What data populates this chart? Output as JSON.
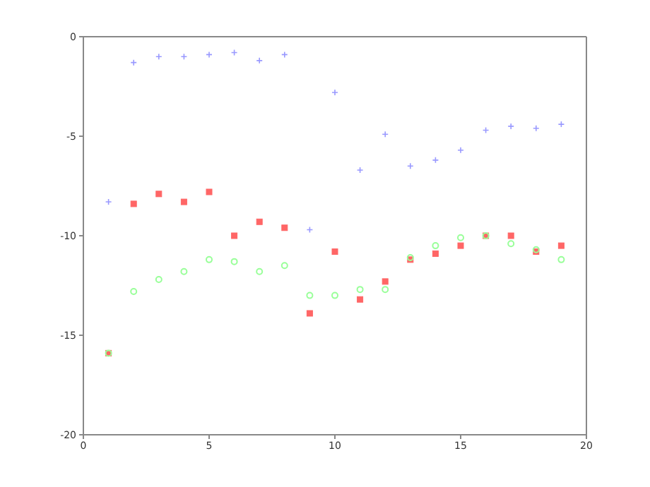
{
  "chart_data": {
    "type": "scatter",
    "x": [
      1,
      2,
      3,
      4,
      5,
      6,
      7,
      8,
      9,
      10,
      11,
      12,
      13,
      14,
      15,
      16,
      17,
      18,
      19
    ],
    "series": [
      {
        "color": "#9999ff",
        "marker": "cross",
        "values": [
          -8.3,
          -1.3,
          -1.0,
          -1.0,
          -0.9,
          -0.8,
          -1.2,
          -0.9,
          -9.7,
          -2.8,
          -6.7,
          -4.9,
          -6.5,
          -6.2,
          -5.7,
          -4.7,
          -4.5,
          -4.6,
          -4.4
        ]
      },
      {
        "color": "#ff6666",
        "marker": "square",
        "values": [
          -15.9,
          -8.4,
          -7.9,
          -8.3,
          -7.8,
          -10.0,
          -9.3,
          -9.6,
          -13.9,
          -10.8,
          -13.2,
          -12.3,
          -11.2,
          -10.9,
          -10.5,
          -10.0,
          -10.0,
          -10.8,
          -10.5
        ]
      },
      {
        "color": "#99ff99",
        "marker": "circle",
        "values": [
          -15.9,
          -12.8,
          -12.2,
          -11.8,
          -11.2,
          -11.3,
          -11.8,
          -11.5,
          -13.0,
          -13.0,
          -12.7,
          -12.7,
          -11.1,
          -10.5,
          -10.1,
          -10.0,
          -10.4,
          -10.7,
          -11.2
        ]
      }
    ],
    "xlim": [
      0,
      20
    ],
    "xticks": [
      0,
      5,
      10,
      15,
      20
    ],
    "ylim": [
      -20,
      0
    ],
    "yticks": [
      -20,
      -15,
      -10,
      -5,
      0
    ],
    "legend": false
  }
}
